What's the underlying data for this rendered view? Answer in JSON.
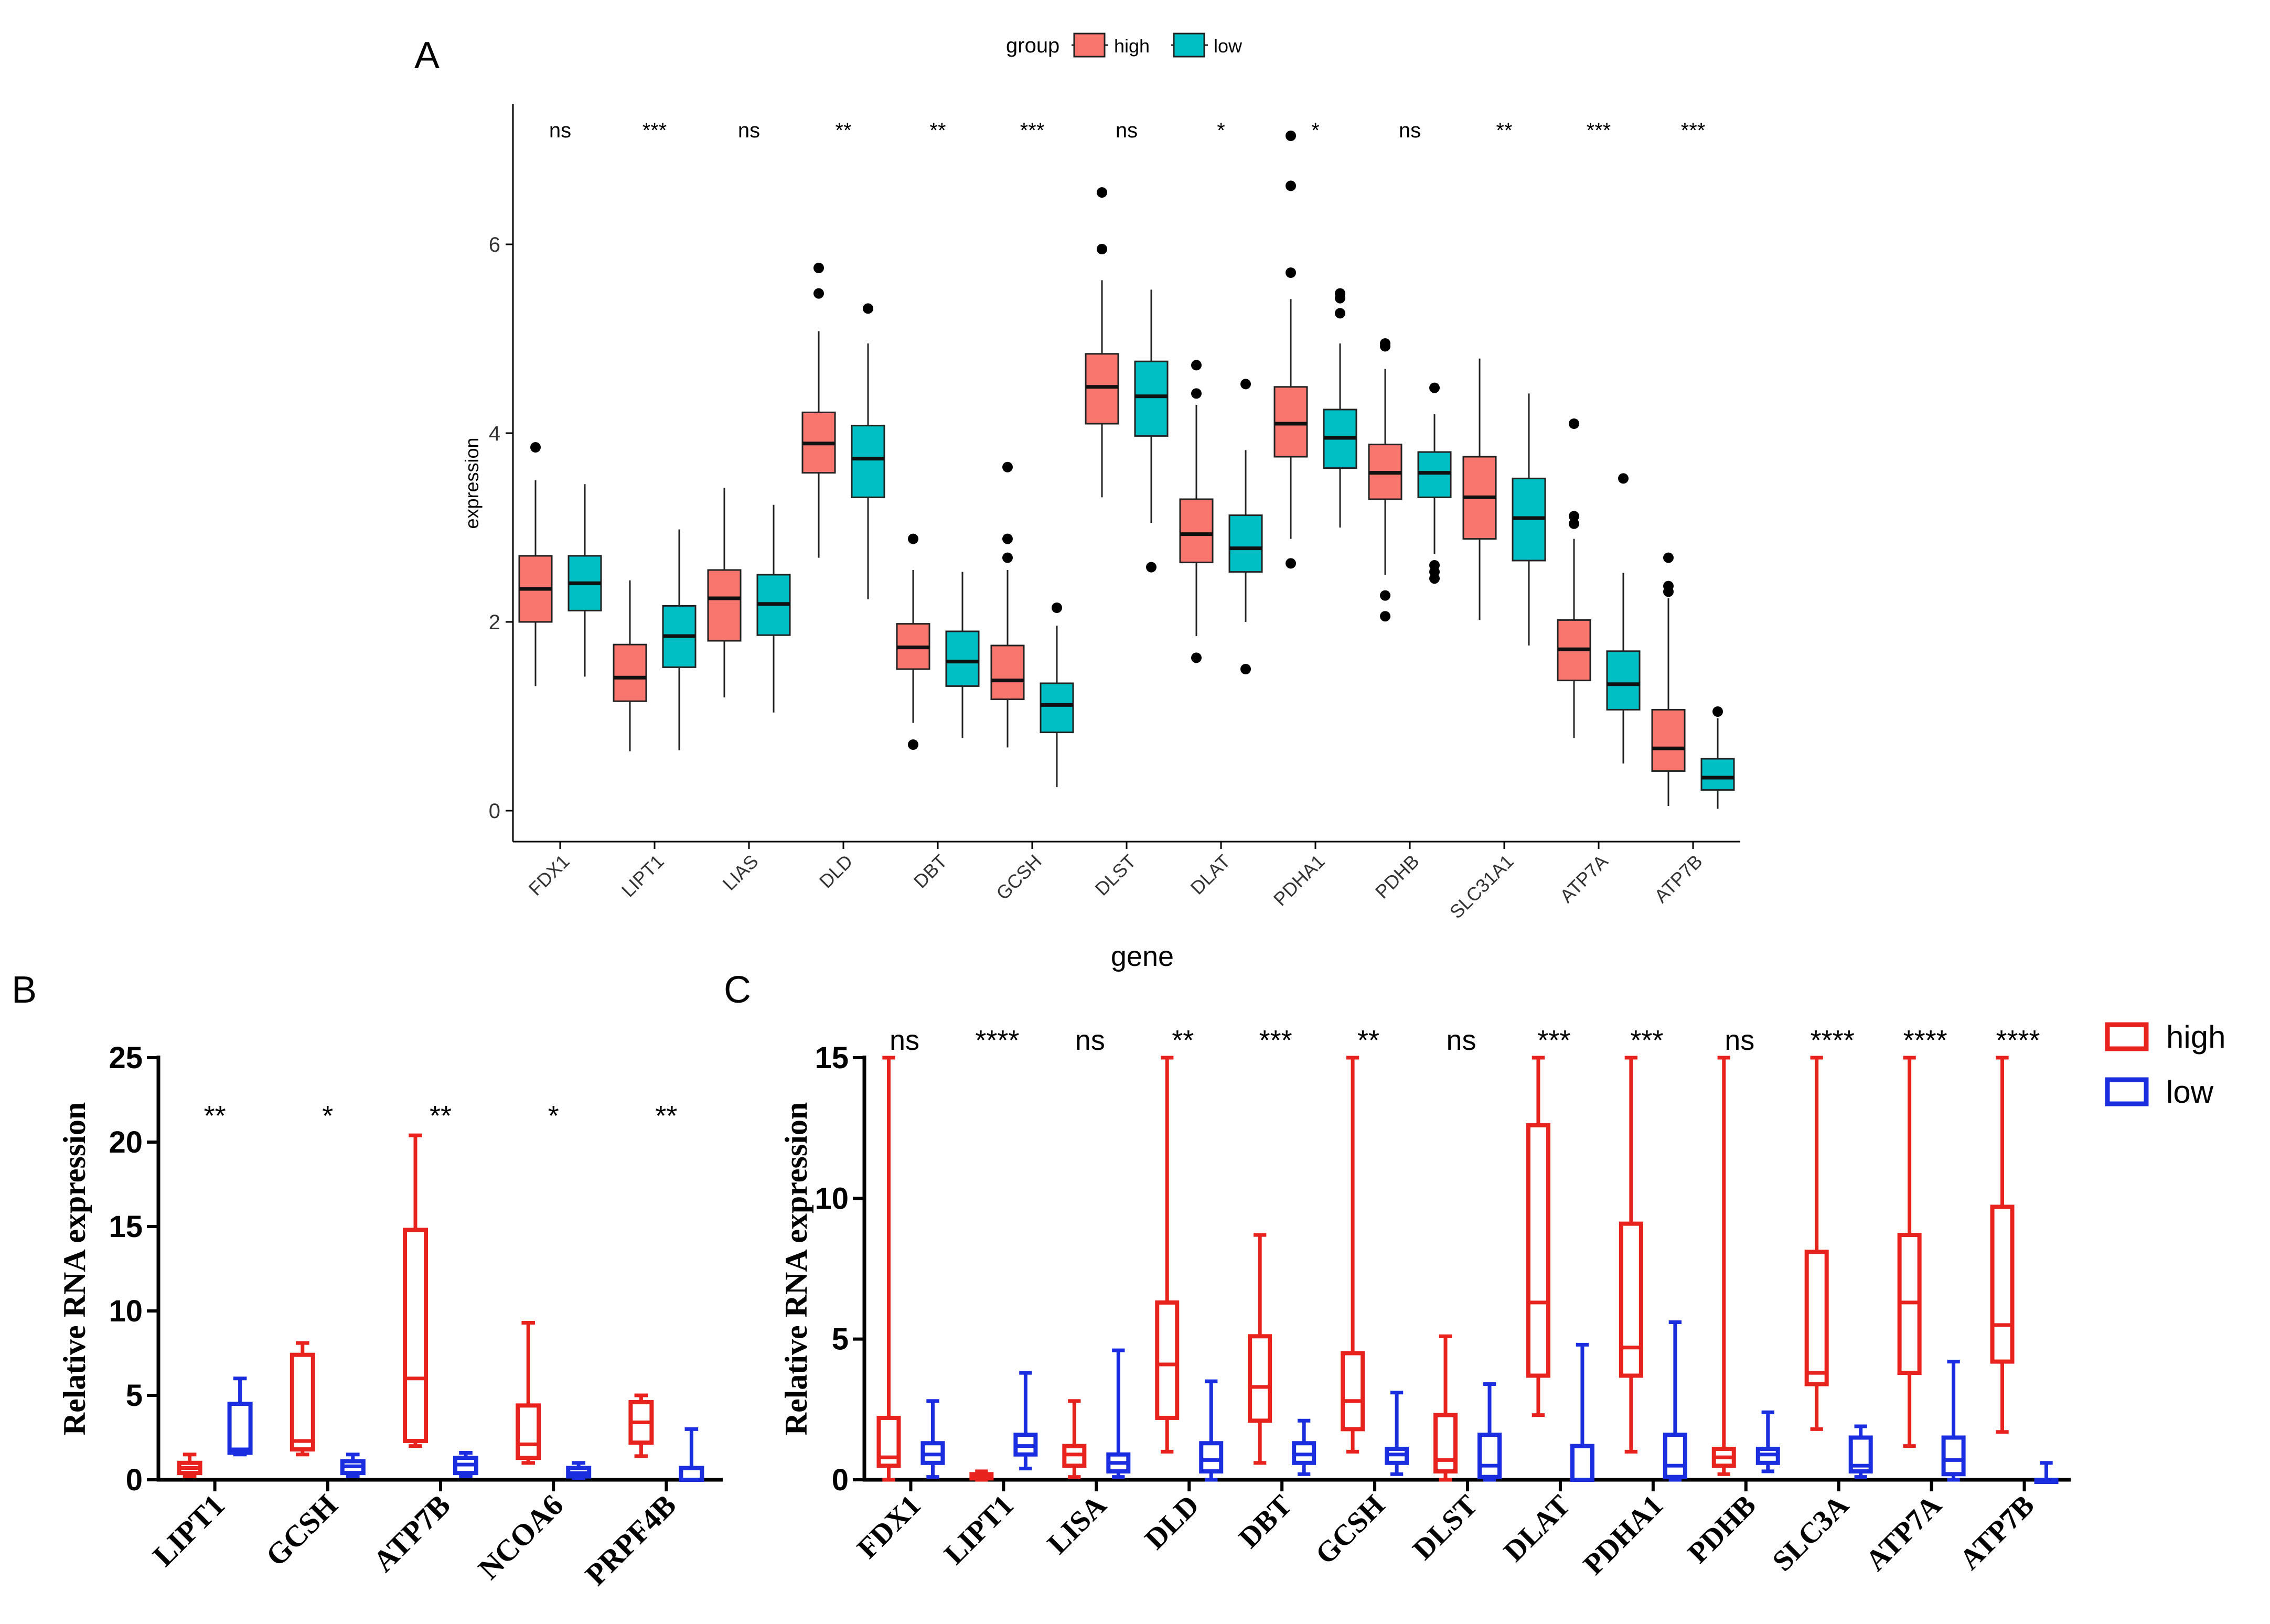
{
  "panel_labels": {
    "a": "A",
    "b": "B",
    "c": "C"
  },
  "colors": {
    "a_high": "#F8766D",
    "a_low": "#00BFC4",
    "bc_high": "#E8231E",
    "bc_low": "#1A2EE0"
  },
  "chart_data": [
    {
      "panel": "A",
      "type": "box",
      "title": "",
      "xlabel": "gene",
      "ylabel": "expression",
      "ylim": [
        0,
        7.6
      ],
      "yticks": [
        0,
        2,
        4,
        6
      ],
      "legend": {
        "title": "group",
        "items": [
          "high",
          "low"
        ],
        "placement": "top"
      },
      "categories": [
        "FDX1",
        "LIPT1",
        "LIAS",
        "DLD",
        "DBT",
        "GCSH",
        "DLST",
        "DLAT",
        "PDHA1",
        "PDHB",
        "SLC31A1",
        "ATP7A",
        "ATP7B"
      ],
      "significance": [
        "ns",
        "***",
        "ns",
        "**",
        "**",
        "***",
        "ns",
        "*",
        "*",
        "ns",
        "**",
        "***",
        "***"
      ],
      "series": [
        {
          "name": "high",
          "boxes": [
            {
              "wmin": 1.32,
              "q1": 2.0,
              "median": 2.35,
              "q3": 2.7,
              "wmax": 3.5,
              "outliers": [
                3.85
              ]
            },
            {
              "wmin": 0.63,
              "q1": 1.16,
              "median": 1.41,
              "q3": 1.76,
              "wmax": 2.44,
              "outliers": []
            },
            {
              "wmin": 1.2,
              "q1": 1.8,
              "median": 2.25,
              "q3": 2.55,
              "wmax": 3.42,
              "outliers": []
            },
            {
              "wmin": 2.68,
              "q1": 3.58,
              "median": 3.89,
              "q3": 4.22,
              "wmax": 5.08,
              "outliers": [
                5.48,
                5.75
              ]
            },
            {
              "wmin": 0.93,
              "q1": 1.5,
              "median": 1.73,
              "q3": 1.98,
              "wmax": 2.55,
              "outliers": [
                2.88,
                0.7
              ]
            },
            {
              "wmin": 0.67,
              "q1": 1.18,
              "median": 1.38,
              "q3": 1.75,
              "wmax": 2.55,
              "outliers": [
                3.64,
                2.88,
                2.68
              ]
            },
            {
              "wmin": 3.32,
              "q1": 4.1,
              "median": 4.49,
              "q3": 4.84,
              "wmax": 5.62,
              "outliers": [
                6.55,
                5.95
              ]
            },
            {
              "wmin": 1.85,
              "q1": 2.63,
              "median": 2.93,
              "q3": 3.3,
              "wmax": 4.3,
              "outliers": [
                4.72,
                4.42,
                1.62
              ]
            },
            {
              "wmin": 2.88,
              "q1": 3.75,
              "median": 4.1,
              "q3": 4.49,
              "wmax": 5.42,
              "outliers": [
                7.15,
                6.62,
                5.7,
                2.62
              ]
            },
            {
              "wmin": 2.5,
              "q1": 3.3,
              "median": 3.58,
              "q3": 3.88,
              "wmax": 4.68,
              "outliers": [
                4.95,
                4.92,
                2.28,
                2.06
              ]
            },
            {
              "wmin": 2.02,
              "q1": 2.88,
              "median": 3.32,
              "q3": 3.75,
              "wmax": 4.79,
              "outliers": []
            },
            {
              "wmin": 0.77,
              "q1": 1.38,
              "median": 1.71,
              "q3": 2.02,
              "wmax": 2.88,
              "outliers": [
                4.1,
                3.12,
                3.04
              ]
            },
            {
              "wmin": 0.05,
              "q1": 0.42,
              "median": 0.66,
              "q3": 1.07,
              "wmax": 2.25,
              "outliers": [
                2.68,
                2.38,
                2.32
              ]
            }
          ]
        },
        {
          "name": "low",
          "boxes": [
            {
              "wmin": 1.42,
              "q1": 2.12,
              "median": 2.41,
              "q3": 2.7,
              "wmax": 3.46,
              "outliers": []
            },
            {
              "wmin": 0.64,
              "q1": 1.52,
              "median": 1.85,
              "q3": 2.17,
              "wmax": 2.98,
              "outliers": []
            },
            {
              "wmin": 1.04,
              "q1": 1.86,
              "median": 2.19,
              "q3": 2.5,
              "wmax": 3.24,
              "outliers": []
            },
            {
              "wmin": 2.24,
              "q1": 3.32,
              "median": 3.73,
              "q3": 4.08,
              "wmax": 4.95,
              "outliers": [
                5.32
              ]
            },
            {
              "wmin": 0.77,
              "q1": 1.32,
              "median": 1.58,
              "q3": 1.9,
              "wmax": 2.53,
              "outliers": []
            },
            {
              "wmin": 0.25,
              "q1": 0.83,
              "median": 1.12,
              "q3": 1.35,
              "wmax": 1.96,
              "outliers": [
                2.15
              ]
            },
            {
              "wmin": 3.05,
              "q1": 3.97,
              "median": 4.39,
              "q3": 4.76,
              "wmax": 5.52,
              "outliers": [
                2.58
              ]
            },
            {
              "wmin": 2.0,
              "q1": 2.53,
              "median": 2.78,
              "q3": 3.13,
              "wmax": 3.82,
              "outliers": [
                4.52,
                1.5
              ]
            },
            {
              "wmin": 3.0,
              "q1": 3.63,
              "median": 3.95,
              "q3": 4.25,
              "wmax": 4.95,
              "outliers": [
                5.48,
                5.43,
                5.27
              ]
            },
            {
              "wmin": 2.72,
              "q1": 3.32,
              "median": 3.58,
              "q3": 3.8,
              "wmax": 4.2,
              "outliers": [
                4.48,
                2.6,
                2.53,
                2.46
              ]
            },
            {
              "wmin": 1.75,
              "q1": 2.65,
              "median": 3.1,
              "q3": 3.52,
              "wmax": 4.42,
              "outliers": []
            },
            {
              "wmin": 0.5,
              "q1": 1.07,
              "median": 1.34,
              "q3": 1.69,
              "wmax": 2.52,
              "outliers": [
                3.52
              ]
            },
            {
              "wmin": 0.02,
              "q1": 0.22,
              "median": 0.35,
              "q3": 0.55,
              "wmax": 0.98,
              "outliers": [
                1.05
              ]
            }
          ]
        }
      ]
    },
    {
      "panel": "B",
      "type": "box",
      "title": "",
      "xlabel": "",
      "ylabel": "Relative RNA expression",
      "ylim": [
        0,
        25
      ],
      "yticks": [
        0,
        5,
        10,
        15,
        20,
        25
      ],
      "categories": [
        "LIPT1",
        "GCSH",
        "ATP7B",
        "NCOA6",
        "PRPF4B"
      ],
      "significance": [
        "**",
        "*",
        "**",
        "*",
        "**"
      ],
      "series": [
        {
          "name": "high",
          "boxes": [
            {
              "wmin": 0.2,
              "q1": 0.4,
              "median": 0.7,
              "q3": 1.0,
              "wmax": 1.5
            },
            {
              "wmin": 1.5,
              "q1": 1.8,
              "median": 2.3,
              "q3": 7.4,
              "wmax": 8.1
            },
            {
              "wmin": 2.0,
              "q1": 2.3,
              "median": 6.0,
              "q3": 14.8,
              "wmax": 20.4
            },
            {
              "wmin": 1.0,
              "q1": 1.3,
              "median": 2.1,
              "q3": 4.4,
              "wmax": 9.3
            },
            {
              "wmin": 1.4,
              "q1": 2.2,
              "median": 3.4,
              "q3": 4.6,
              "wmax": 5.0
            }
          ]
        },
        {
          "name": "low",
          "boxes": [
            {
              "wmin": 1.5,
              "q1": 1.6,
              "median": 1.8,
              "q3": 4.5,
              "wmax": 6.0
            },
            {
              "wmin": 0.2,
              "q1": 0.4,
              "median": 0.8,
              "q3": 1.1,
              "wmax": 1.5
            },
            {
              "wmin": 0.2,
              "q1": 0.4,
              "median": 0.9,
              "q3": 1.3,
              "wmax": 1.6
            },
            {
              "wmin": 0.1,
              "q1": 0.2,
              "median": 0.4,
              "q3": 0.7,
              "wmax": 1.0
            },
            {
              "wmin": 0.0,
              "q1": 0.0,
              "median": 0.7,
              "q3": 0.7,
              "wmax": 3.0
            }
          ]
        }
      ]
    },
    {
      "panel": "C",
      "type": "box",
      "title": "",
      "xlabel": "",
      "ylabel": "Relative RNA expression",
      "ylim": [
        0,
        15
      ],
      "yticks": [
        0,
        5,
        10,
        15
      ],
      "legend": {
        "items": [
          "high",
          "low"
        ],
        "placement": "top-right"
      },
      "categories": [
        "FDX1",
        "LIPT1",
        "LISA",
        "DLD",
        "DBT",
        "GCSH",
        "DLST",
        "DLAT",
        "PDHA1",
        "PDHB",
        "SLC3A",
        "ATP7A",
        "ATP7B"
      ],
      "significance": [
        "ns",
        "****",
        "ns",
        "**",
        "***",
        "**",
        "ns",
        "***",
        "***",
        "ns",
        "****",
        "****",
        "****"
      ],
      "series": [
        {
          "name": "high",
          "boxes": [
            {
              "wmin": 0.0,
              "q1": 0.5,
              "median": 0.8,
              "q3": 2.2,
              "wmax": 15
            },
            {
              "wmin": 0.0,
              "q1": 0.05,
              "median": 0.1,
              "q3": 0.2,
              "wmax": 0.3
            },
            {
              "wmin": 0.1,
              "q1": 0.5,
              "median": 0.9,
              "q3": 1.2,
              "wmax": 2.8
            },
            {
              "wmin": 1.0,
              "q1": 2.2,
              "median": 4.1,
              "q3": 6.3,
              "wmax": 15
            },
            {
              "wmin": 0.6,
              "q1": 2.1,
              "median": 3.3,
              "q3": 5.1,
              "wmax": 8.7
            },
            {
              "wmin": 1.0,
              "q1": 1.8,
              "median": 2.8,
              "q3": 4.5,
              "wmax": 15
            },
            {
              "wmin": 0.0,
              "q1": 0.3,
              "median": 0.7,
              "q3": 2.3,
              "wmax": 5.1
            },
            {
              "wmin": 2.3,
              "q1": 3.7,
              "median": 6.3,
              "q3": 12.6,
              "wmax": 15
            },
            {
              "wmin": 1.0,
              "q1": 3.7,
              "median": 4.7,
              "q3": 9.1,
              "wmax": 15
            },
            {
              "wmin": 0.2,
              "q1": 0.5,
              "median": 0.8,
              "q3": 1.1,
              "wmax": 15
            },
            {
              "wmin": 1.8,
              "q1": 3.4,
              "median": 3.8,
              "q3": 8.1,
              "wmax": 15
            },
            {
              "wmin": 1.2,
              "q1": 3.8,
              "median": 6.3,
              "q3": 8.7,
              "wmax": 15
            },
            {
              "wmin": 1.7,
              "q1": 4.2,
              "median": 5.5,
              "q3": 9.7,
              "wmax": 15
            }
          ]
        },
        {
          "name": "low",
          "boxes": [
            {
              "wmin": 0.1,
              "q1": 0.6,
              "median": 0.9,
              "q3": 1.3,
              "wmax": 2.8
            },
            {
              "wmin": 0.4,
              "q1": 0.9,
              "median": 1.2,
              "q3": 1.6,
              "wmax": 3.8
            },
            {
              "wmin": 0.1,
              "q1": 0.3,
              "median": 0.6,
              "q3": 0.9,
              "wmax": 4.6
            },
            {
              "wmin": 0.0,
              "q1": 0.3,
              "median": 0.7,
              "q3": 1.3,
              "wmax": 3.5
            },
            {
              "wmin": 0.2,
              "q1": 0.6,
              "median": 0.9,
              "q3": 1.3,
              "wmax": 2.1
            },
            {
              "wmin": 0.2,
              "q1": 0.6,
              "median": 0.9,
              "q3": 1.1,
              "wmax": 3.1
            },
            {
              "wmin": 0.0,
              "q1": 0.1,
              "median": 0.5,
              "q3": 1.6,
              "wmax": 3.4
            },
            {
              "wmin": 0.0,
              "q1": 0.0,
              "median": 0.0,
              "q3": 1.2,
              "wmax": 4.8
            },
            {
              "wmin": 0.0,
              "q1": 0.1,
              "median": 0.5,
              "q3": 1.6,
              "wmax": 5.6
            },
            {
              "wmin": 0.3,
              "q1": 0.6,
              "median": 0.9,
              "q3": 1.1,
              "wmax": 2.4
            },
            {
              "wmin": 0.1,
              "q1": 0.3,
              "median": 0.5,
              "q3": 1.5,
              "wmax": 1.9
            },
            {
              "wmin": 0.0,
              "q1": 0.2,
              "median": 0.7,
              "q3": 1.5,
              "wmax": 4.2
            },
            {
              "wmin": 0.0,
              "q1": 0.0,
              "median": 0.0,
              "q3": 0.0,
              "wmax": 0.6
            }
          ]
        }
      ]
    }
  ]
}
